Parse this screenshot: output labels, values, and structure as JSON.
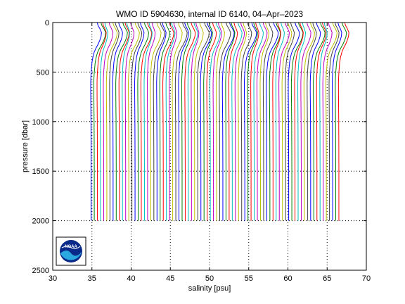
{
  "chart_data": {
    "type": "line",
    "title": "WMO ID 5904630, internal ID 6140, 04–Apr–2023",
    "xlabel": "salinity [psu]",
    "ylabel": "pressure [dbar]",
    "xlim": [
      30,
      70
    ],
    "ylim": [
      0,
      2500
    ],
    "y_reversed": true,
    "grid": "dotted",
    "xticks": [
      30,
      35,
      40,
      45,
      50,
      55,
      60,
      65,
      70
    ],
    "yticks": [
      0,
      500,
      1000,
      1500,
      2000,
      2500
    ],
    "offset_profiles": {
      "count": 80,
      "first_deep_salinity": 34.9,
      "step_psu": 0.4,
      "max_pressure": 2000,
      "pressure_levels": [
        0,
        30,
        60,
        100,
        140,
        180,
        220,
        260,
        300,
        350,
        400,
        450,
        500,
        550,
        600,
        700,
        800,
        1000,
        1200,
        1500,
        1800,
        2000
      ],
      "salinity_offset_shape": [
        0.7,
        0.8,
        1.0,
        1.2,
        1.15,
        1.0,
        0.8,
        0.55,
        0.35,
        0.2,
        0.1,
        0.05,
        0.0,
        -0.03,
        -0.05,
        -0.05,
        -0.04,
        -0.02,
        -0.01,
        0.0,
        0.0,
        0.0
      ],
      "colors": [
        "#0000ff",
        "#008000",
        "#ff0000",
        "#00bfbf",
        "#bf00bf",
        "#bfbf00",
        "#404040"
      ]
    }
  },
  "logo": {
    "text": "NOAA"
  }
}
